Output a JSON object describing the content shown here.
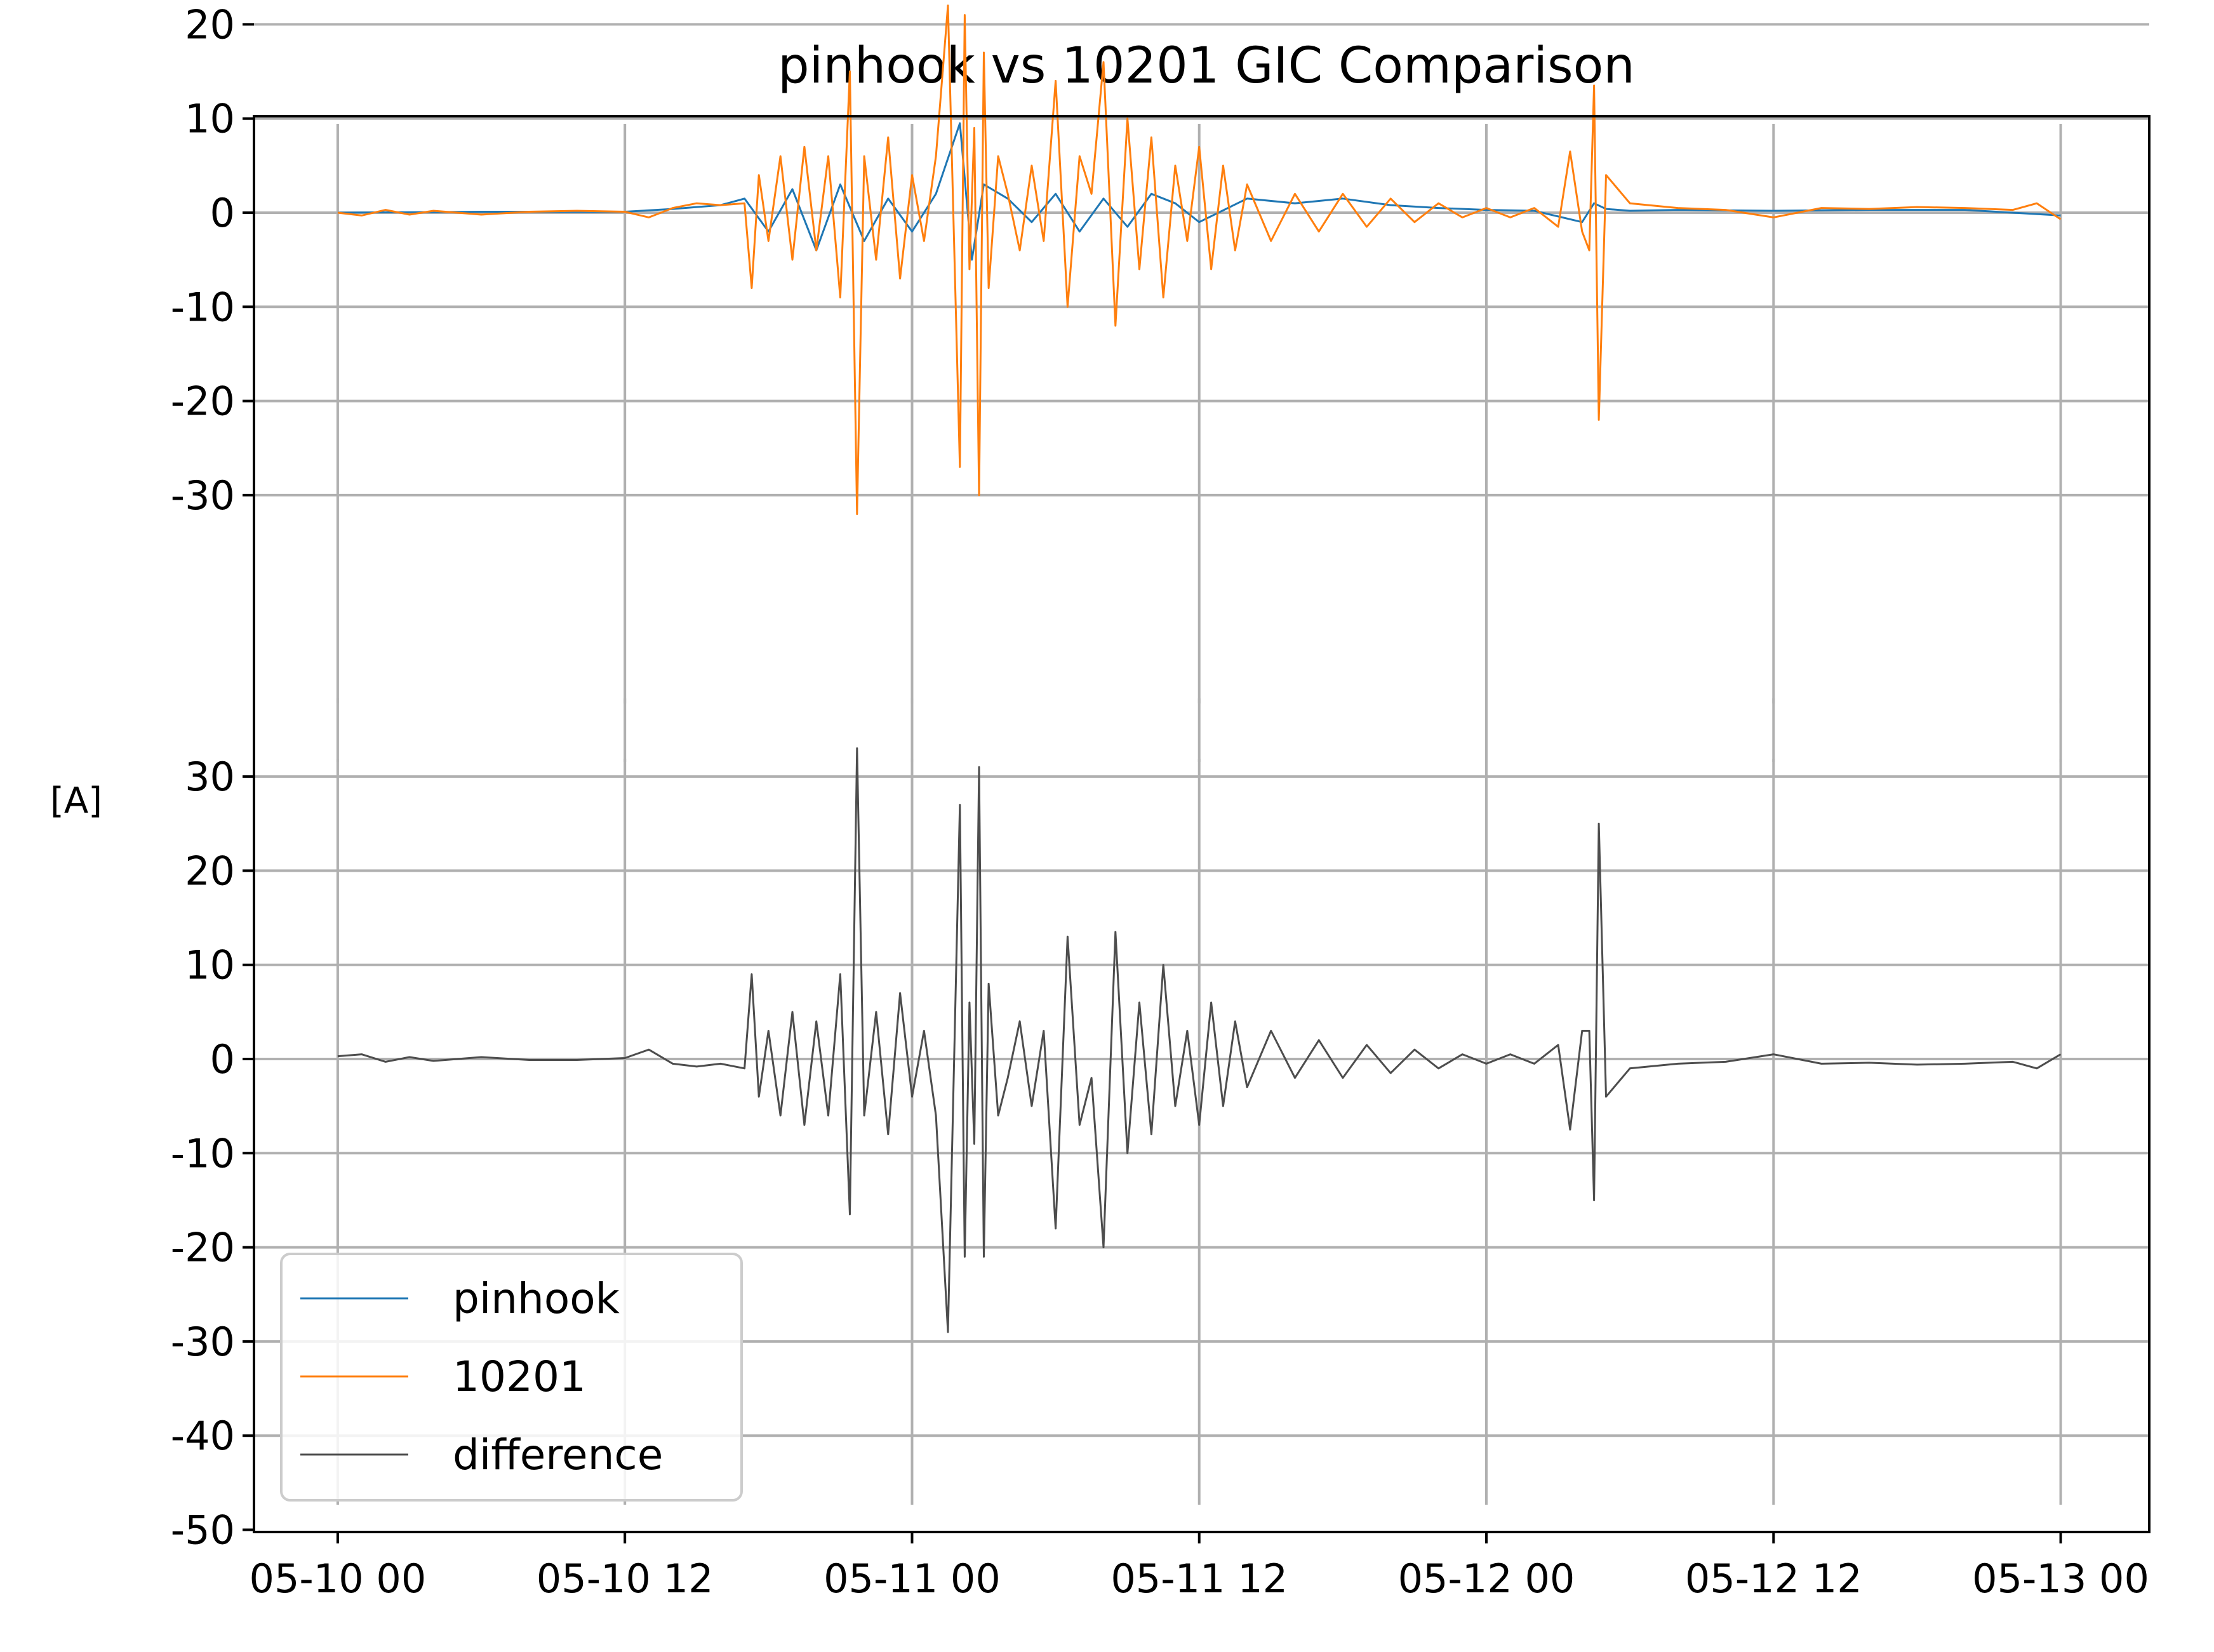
{
  "chart_data": {
    "type": "line",
    "title": "pinhook vs 10201 GIC Comparison",
    "ylabel": "[A]",
    "xlabel": "",
    "x_tick_labels": [
      "05-10 00",
      "05-10 12",
      "05-11 00",
      "05-11 12",
      "05-12 00",
      "05-12 12",
      "05-13 00"
    ],
    "x_tick_hours": [
      0,
      12,
      24,
      36,
      48,
      60,
      72
    ],
    "xlim_hours": [
      -3.5,
      75.7
    ],
    "ylim": [
      -50,
      30
    ],
    "y_ticks": [
      -50,
      -40,
      -30,
      -20,
      -10,
      0,
      10,
      20
    ],
    "y_tick_labels": [
      "-50",
      "-40",
      "-30",
      "-20",
      "-10",
      "0",
      "10",
      "20"
    ],
    "lower_y_ticks": [
      30,
      20,
      10,
      0,
      -10,
      -20,
      -30,
      -40,
      -50
    ],
    "lower_y_tick_labels": [
      "30",
      "20",
      "10",
      "0",
      "-10",
      "-20",
      "-30",
      "-40",
      "-50"
    ],
    "grid": true,
    "legend_position": "lower-left",
    "panels": [
      {
        "id": "top",
        "ylim": [
          -32.5,
          30
        ],
        "y_ticks": [
          20,
          10,
          0,
          -10,
          -20,
          -30
        ],
        "y_tick_labels": [
          "20",
          "10",
          "0",
          "-10",
          "-20",
          "-30"
        ]
      },
      {
        "id": "bottom",
        "ylim": [
          -50,
          35
        ],
        "y_ticks": [
          30,
          20,
          10,
          0,
          -10,
          -20,
          -30,
          -40,
          -50
        ],
        "y_tick_labels": [
          "30",
          "20",
          "10",
          "0",
          "-10",
          "-20",
          "-30",
          "-40",
          "-50"
        ]
      }
    ],
    "series": [
      {
        "name": "pinhook",
        "color": "#1f77b4",
        "panel": "top",
        "x_hours": [
          0,
          6,
          12,
          14,
          16,
          17,
          18,
          19,
          20,
          21,
          22,
          23,
          24,
          25,
          26,
          26.5,
          27,
          28,
          29,
          30,
          31,
          32,
          33,
          34,
          35,
          36,
          38,
          40,
          42,
          44,
          46,
          48,
          50,
          52,
          52.5,
          53,
          54,
          56,
          60,
          64,
          68,
          72
        ],
        "values": [
          0,
          0.1,
          0.1,
          0.4,
          0.8,
          1.5,
          -2,
          2.5,
          -4,
          3,
          -3,
          1.5,
          -2,
          2,
          9.5,
          -5,
          3,
          1.5,
          -1,
          2,
          -2,
          1.5,
          -1.5,
          2,
          1,
          -1,
          1.5,
          1,
          1.5,
          0.8,
          0.5,
          0.3,
          0.2,
          -1,
          1,
          0.4,
          0.2,
          0.3,
          0.2,
          0.3,
          0.3,
          -0.3
        ]
      },
      {
        "name": "10201",
        "color": "#ff7f0e",
        "panel": "top",
        "x_hours": [
          0,
          1,
          2,
          3,
          4,
          6,
          8,
          10,
          12,
          13,
          14,
          15,
          16,
          17,
          17.3,
          17.6,
          18,
          18.5,
          19,
          19.5,
          20,
          20.5,
          21,
          21.4,
          21.7,
          22,
          22.5,
          23,
          23.5,
          24,
          24.5,
          25,
          25.5,
          26,
          26.2,
          26.4,
          26.6,
          26.8,
          27,
          27.2,
          27.6,
          28,
          28.5,
          29,
          29.5,
          30,
          30.5,
          31,
          31.5,
          32,
          32.5,
          33,
          33.5,
          34,
          34.5,
          35,
          35.5,
          36,
          36.5,
          37,
          37.5,
          38,
          39,
          40,
          41,
          42,
          43,
          44,
          45,
          46,
          47,
          48,
          49,
          50,
          51,
          51.5,
          52,
          52.3,
          52.5,
          52.7,
          53,
          54,
          56,
          58,
          60,
          62,
          64,
          66,
          68,
          70,
          71,
          72
        ],
        "values": [
          0,
          -0.3,
          0.3,
          -0.2,
          0.2,
          -0.2,
          0.1,
          0.2,
          0.1,
          -0.5,
          0.5,
          1,
          0.8,
          1,
          -8,
          4,
          -3,
          6,
          -5,
          7,
          -4,
          6,
          -9,
          15,
          -32,
          6,
          -5,
          8,
          -7,
          4,
          -3,
          6,
          22,
          -27,
          21,
          -6,
          9,
          -30,
          17,
          -8,
          6,
          2,
          -4,
          5,
          -3,
          14,
          -10,
          6,
          2,
          16,
          -12,
          10,
          -6,
          8,
          -9,
          5,
          -3,
          7,
          -6,
          5,
          -4,
          3,
          -3,
          2,
          -2,
          2,
          -1.5,
          1.5,
          -1,
          1,
          -0.5,
          0.5,
          -0.5,
          0.5,
          -1.5,
          6.5,
          -2,
          -4,
          13.5,
          -22,
          4,
          1,
          0.5,
          0.3,
          -0.5,
          0.5,
          0.4,
          0.6,
          0.5,
          0.3,
          1,
          -0.7
        ]
      },
      {
        "name": "difference",
        "color": "#4d4d4d",
        "panel": "bottom",
        "x_hours": [
          0,
          1,
          2,
          3,
          4,
          6,
          8,
          10,
          12,
          13,
          14,
          15,
          16,
          17,
          17.3,
          17.6,
          18,
          18.5,
          19,
          19.5,
          20,
          20.5,
          21,
          21.4,
          21.7,
          22,
          22.5,
          23,
          23.5,
          24,
          24.5,
          25,
          25.5,
          26,
          26.2,
          26.4,
          26.6,
          26.8,
          27,
          27.2,
          27.6,
          28,
          28.5,
          29,
          29.5,
          30,
          30.5,
          31,
          31.5,
          32,
          32.5,
          33,
          33.5,
          34,
          34.5,
          35,
          35.5,
          36,
          36.5,
          37,
          37.5,
          38,
          39,
          40,
          41,
          42,
          43,
          44,
          45,
          46,
          47,
          48,
          49,
          50,
          51,
          51.5,
          52,
          52.3,
          52.5,
          52.7,
          53,
          54,
          56,
          58,
          60,
          62,
          64,
          66,
          68,
          70,
          71,
          72
        ],
        "values": [
          0.3,
          0.5,
          -0.3,
          0.2,
          -0.2,
          0.2,
          -0.1,
          -0.1,
          0.1,
          1,
          -0.5,
          -0.8,
          -0.5,
          -1,
          9,
          -4,
          3,
          -6,
          5,
          -7,
          4,
          -6,
          9,
          -16.5,
          33,
          -6,
          5,
          -8,
          7,
          -4,
          3,
          -6,
          -29,
          27,
          -21,
          6,
          -9,
          31,
          -21,
          8,
          -6,
          -2,
          4,
          -5,
          3,
          -18,
          13,
          -7,
          -2,
          -20,
          13.5,
          -10,
          6,
          -8,
          10,
          -5,
          3,
          -7,
          6,
          -5,
          4,
          -3,
          3,
          -2,
          2,
          -2,
          1.5,
          -1.5,
          1,
          -1,
          0.5,
          -0.5,
          0.5,
          -0.5,
          1.5,
          -7.5,
          3,
          3,
          -15,
          25,
          -4,
          -1,
          -0.5,
          -0.3,
          0.5,
          -0.5,
          -0.4,
          -0.6,
          -0.5,
          -0.3,
          -1,
          0.5
        ]
      }
    ],
    "legend": [
      {
        "name": "pinhook",
        "color": "#1f77b4"
      },
      {
        "name": "10201",
        "color": "#ff7f0e"
      },
      {
        "name": "difference",
        "color": "#4d4d4d"
      }
    ]
  }
}
